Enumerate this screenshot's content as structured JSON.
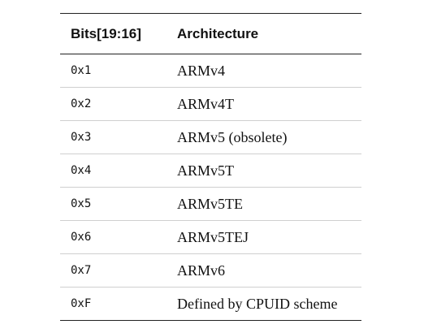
{
  "table": {
    "headers": [
      "Bits[19:16]",
      "Architecture"
    ],
    "rows": [
      {
        "bits": "0x1",
        "arch": "ARMv4"
      },
      {
        "bits": "0x2",
        "arch": "ARMv4T"
      },
      {
        "bits": "0x3",
        "arch": "ARMv5 (obsolete)"
      },
      {
        "bits": "0x4",
        "arch": "ARMv5T"
      },
      {
        "bits": "0x5",
        "arch": "ARMv5TE"
      },
      {
        "bits": "0x6",
        "arch": "ARMv5TEJ"
      },
      {
        "bits": "0x7",
        "arch": "ARMv6"
      },
      {
        "bits": "0xF",
        "arch": "Defined by CPUID scheme"
      }
    ]
  }
}
